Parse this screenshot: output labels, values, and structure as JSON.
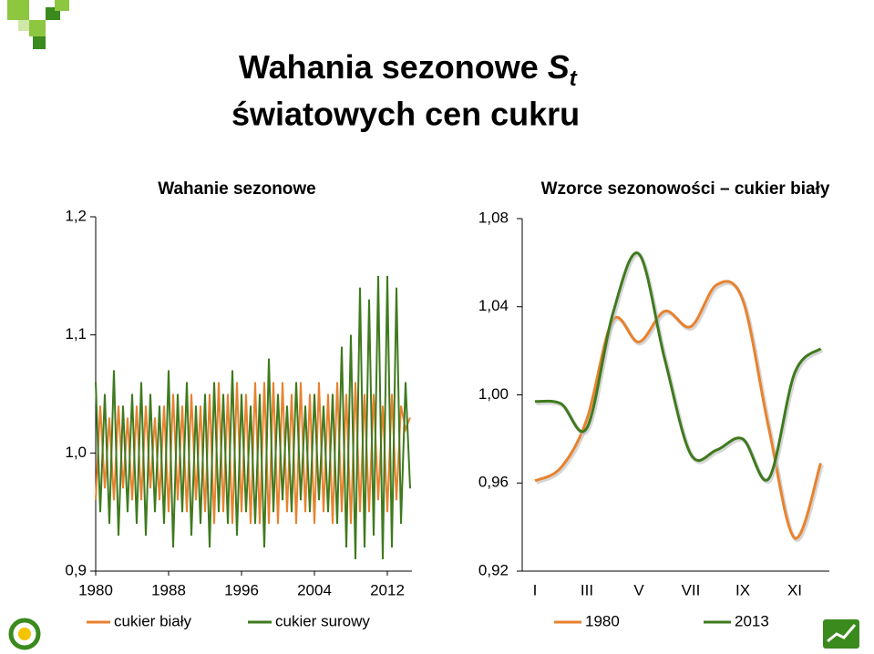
{
  "title": {
    "line1": "Wahania sezonowe",
    "symbol": "S",
    "subscript": "t",
    "line2": "światowych cen cukru"
  },
  "chart_data": [
    {
      "type": "line",
      "title": "Wahanie sezonowe",
      "x": [
        1980,
        1980.5,
        1981,
        1981.5,
        1982,
        1982.5,
        1983,
        1983.5,
        1984,
        1984.5,
        1985,
        1985.5,
        1986,
        1986.5,
        1987,
        1987.5,
        1988,
        1988.5,
        1989,
        1989.5,
        1990,
        1990.5,
        1991,
        1991.5,
        1992,
        1992.5,
        1993,
        1993.5,
        1994,
        1994.5,
        1995,
        1995.5,
        1996,
        1996.5,
        1997,
        1997.5,
        1998,
        1998.5,
        1999,
        1999.5,
        2000,
        2000.5,
        2001,
        2001.5,
        2002,
        2002.5,
        2003,
        2003.5,
        2004,
        2004.5,
        2005,
        2005.5,
        2006,
        2006.5,
        2007,
        2007.5,
        2008,
        2008.5,
        2009,
        2009.5,
        2010,
        2010.5,
        2011,
        2011.5,
        2012,
        2012.5,
        2013,
        2013.5,
        2014,
        2014.5
      ],
      "series": [
        {
          "name": "cukier biały",
          "color": "#e8822e",
          "values": [
            0.96,
            1.04,
            0.97,
            1.03,
            0.96,
            1.04,
            0.97,
            1.03,
            0.96,
            1.04,
            0.96,
            1.04,
            0.97,
            1.03,
            0.96,
            1.04,
            0.95,
            1.05,
            0.96,
            1.04,
            0.95,
            1.05,
            0.96,
            1.04,
            0.95,
            1.05,
            0.94,
            1.06,
            0.95,
            1.05,
            0.94,
            1.06,
            0.95,
            1.05,
            0.94,
            1.06,
            0.94,
            1.06,
            0.94,
            1.06,
            0.94,
            1.06,
            0.95,
            1.05,
            0.94,
            1.06,
            0.95,
            1.05,
            0.94,
            1.06,
            0.95,
            1.05,
            0.94,
            1.06,
            0.95,
            1.05,
            0.94,
            1.06,
            0.95,
            1.05,
            0.95,
            1.05,
            0.96,
            1.04,
            0.95,
            1.05,
            0.96,
            1.04,
            1.02,
            1.03
          ]
        },
        {
          "name": "cukier surowy",
          "color": "#3f7a1e",
          "values": [
            1.06,
            0.95,
            1.05,
            0.94,
            1.07,
            0.93,
            1.04,
            0.95,
            1.05,
            0.94,
            1.06,
            0.93,
            1.05,
            0.95,
            1.04,
            0.94,
            1.07,
            0.92,
            1.05,
            0.95,
            1.06,
            0.93,
            1.04,
            0.94,
            1.05,
            0.92,
            1.06,
            0.95,
            1.05,
            0.94,
            1.07,
            0.93,
            1.05,
            0.95,
            1.04,
            0.94,
            1.05,
            0.92,
            1.08,
            0.95,
            1.05,
            0.96,
            1.04,
            0.95,
            1.06,
            0.96,
            1.04,
            0.95,
            1.05,
            0.96,
            1.04,
            0.95,
            1.05,
            0.94,
            1.09,
            0.92,
            1.1,
            0.91,
            1.14,
            0.92,
            1.13,
            0.93,
            1.15,
            0.91,
            1.15,
            0.92,
            1.14,
            0.94,
            1.06,
            0.97
          ]
        }
      ],
      "xlim": [
        1980,
        2014.7
      ],
      "xticks": [
        1980,
        1988,
        1996,
        2004,
        2012
      ],
      "ylim": [
        0.9,
        1.2
      ],
      "yticks": [
        {
          "value": 0.9,
          "label": "0,9"
        },
        {
          "value": 1.0,
          "label": "1,0"
        },
        {
          "value": 1.1,
          "label": "1,1"
        },
        {
          "value": 1.2,
          "label": "1,2"
        }
      ]
    },
    {
      "type": "line",
      "title": "Wzorce sezonowości – cukier biały",
      "smooth": true,
      "categories": [
        "I",
        null,
        "III",
        null,
        "V",
        null,
        "VII",
        null,
        "IX",
        null,
        "XI",
        null
      ],
      "series": [
        {
          "name": "1980",
          "color": "#e8822e",
          "values": [
            0.961,
            0.967,
            0.989,
            1.034,
            1.024,
            1.038,
            1.031,
            1.05,
            1.043,
            0.985,
            0.935,
            0.969
          ]
        },
        {
          "name": "2013",
          "color": "#3f7a1e",
          "values": [
            0.997,
            0.996,
            0.985,
            1.037,
            1.064,
            1.016,
            0.973,
            0.975,
            0.98,
            0.962,
            1.01,
            1.021
          ]
        }
      ],
      "ylim": [
        0.92,
        1.08
      ],
      "yticks": [
        {
          "value": 0.92,
          "label": "0,92"
        },
        {
          "value": 0.96,
          "label": "0,96"
        },
        {
          "value": 1.0,
          "label": "1,00"
        },
        {
          "value": 1.04,
          "label": "1,04"
        },
        {
          "value": 1.08,
          "label": "1,08"
        }
      ]
    }
  ]
}
